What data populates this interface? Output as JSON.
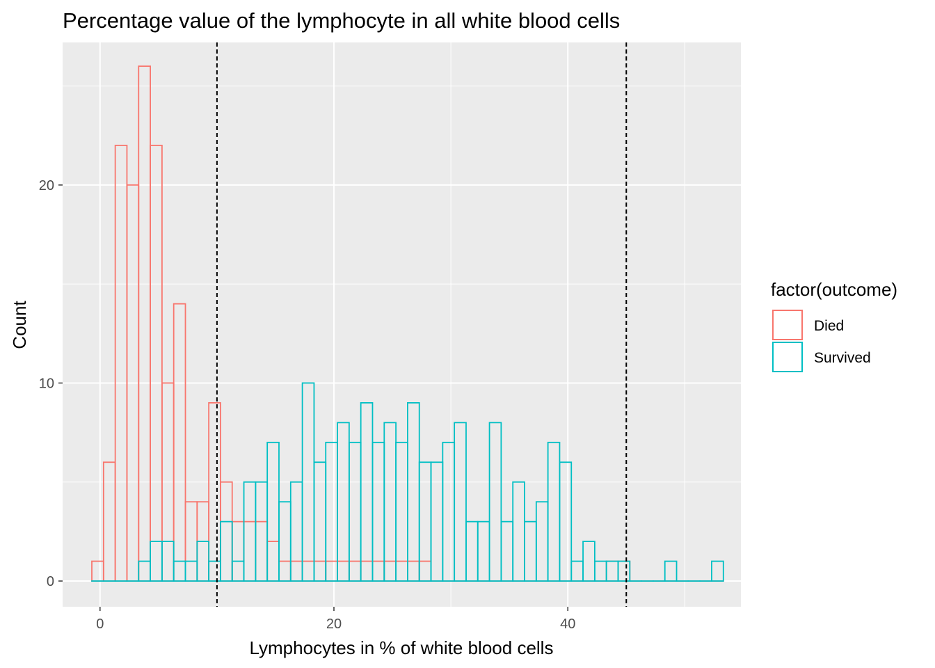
{
  "chart_data": {
    "type": "bar",
    "subtype": "histogram",
    "title": "Percentage value of the lymphocyte in all white blood cells",
    "xlabel": "Lymphocytes in % of white blood cells",
    "ylabel": "Count",
    "xlim": [
      -3.2,
      54.8
    ],
    "ylim": [
      -1.3,
      27.2
    ],
    "x_ticks": [
      0,
      20,
      40
    ],
    "y_ticks": [
      0,
      10,
      20
    ],
    "grid": true,
    "legend": {
      "title": "factor(outcome)",
      "position": "right"
    },
    "vlines": [
      10,
      45
    ],
    "bins": {
      "first_center": -0.2,
      "width": 1.0,
      "count": 54
    },
    "series": [
      {
        "name": "Died",
        "color": "#F8766D",
        "values": [
          1,
          6,
          22,
          20,
          26,
          22,
          10,
          14,
          4,
          4,
          9,
          5,
          3,
          3,
          3,
          2,
          1,
          1,
          1,
          1,
          1,
          1,
          1,
          1,
          1,
          1,
          1,
          1,
          1,
          0,
          0,
          0,
          0,
          0,
          0,
          0,
          0,
          0,
          0,
          0,
          0,
          0,
          0,
          0,
          1,
          1,
          0,
          0,
          0,
          0,
          0,
          0,
          0,
          0
        ]
      },
      {
        "name": "Survived",
        "color": "#00BFC4",
        "values": [
          0,
          0,
          0,
          0,
          1,
          2,
          2,
          1,
          1,
          2,
          1,
          3,
          1,
          5,
          5,
          7,
          4,
          5,
          10,
          6,
          7,
          8,
          7,
          9,
          7,
          8,
          7,
          9,
          6,
          6,
          7,
          8,
          3,
          3,
          8,
          3,
          5,
          3,
          4,
          7,
          6,
          1,
          2,
          1,
          1,
          1,
          0,
          0,
          0,
          1,
          0,
          0,
          0,
          1
        ]
      }
    ]
  }
}
